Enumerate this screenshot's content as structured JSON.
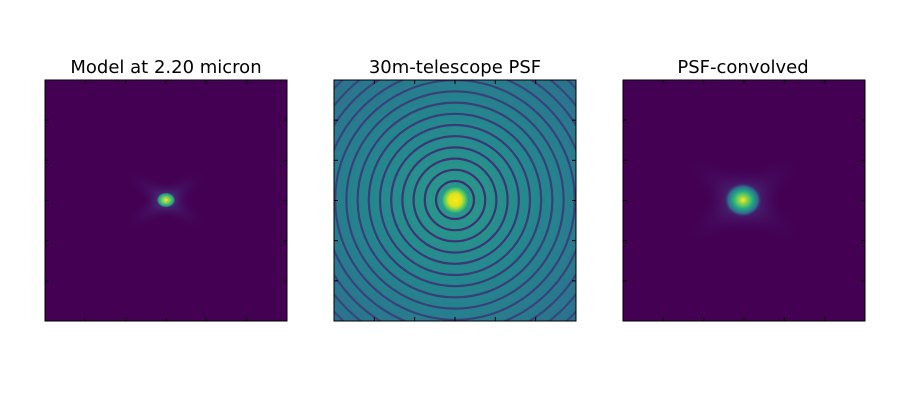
{
  "chart_data": [
    {
      "type": "image",
      "title": "Model at 2.20 micron"
    },
    {
      "type": "image",
      "title": "30m-telescope PSF"
    },
    {
      "type": "image",
      "title": "PSF-convolved"
    }
  ]
}
